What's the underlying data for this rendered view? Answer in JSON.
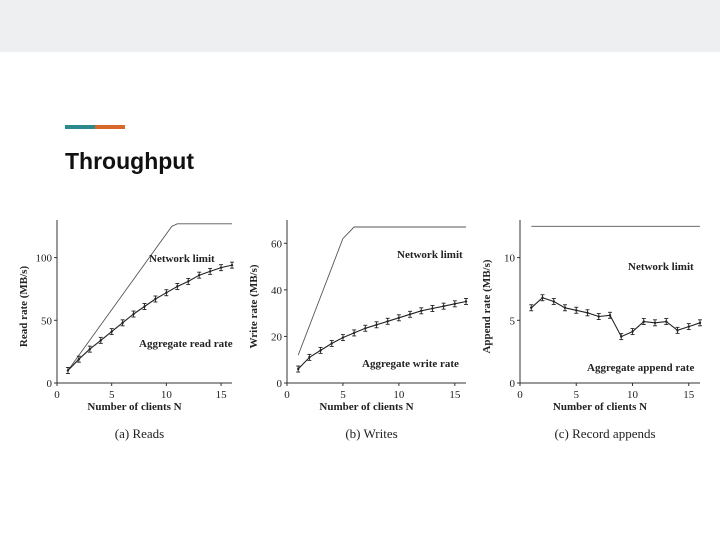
{
  "slide": {
    "title": "Throughput",
    "accent_colors": [
      "#2a8a8c",
      "#d9662b"
    ],
    "background_band": "#eeeff0"
  },
  "chart_data": [
    {
      "type": "line",
      "caption": "(a) Reads",
      "xlabel": "Number of clients N",
      "ylabel": "Read rate (MB/s)",
      "xlim": [
        0,
        16
      ],
      "ylim": [
        0,
        130
      ],
      "xticks": [
        "0",
        "5",
        "10",
        "15"
      ],
      "yticks": [
        "0",
        "50",
        "100"
      ],
      "grid": false,
      "series": [
        {
          "name": "Network limit",
          "x": [
            1,
            10.5,
            11,
            16
          ],
          "y": [
            10,
            125,
            127,
            127
          ]
        },
        {
          "name": "Aggregate read rate",
          "x": [
            1,
            2,
            3,
            4,
            5,
            6,
            7,
            8,
            9,
            10,
            11,
            12,
            13,
            14,
            15,
            16
          ],
          "y": [
            10,
            19,
            27,
            34,
            41,
            48,
            55,
            61,
            67,
            72,
            77,
            81,
            86,
            89,
            92,
            94
          ]
        }
      ]
    },
    {
      "type": "line",
      "caption": "(b) Writes",
      "xlabel": "Number of clients N",
      "ylabel": "Write rate (MB/s)",
      "xlim": [
        0,
        16
      ],
      "ylim": [
        0,
        70
      ],
      "xticks": [
        "0",
        "5",
        "10",
        "15"
      ],
      "yticks": [
        "0",
        "20",
        "40",
        "60"
      ],
      "grid": false,
      "series": [
        {
          "name": "Network limit",
          "x": [
            1,
            5,
            6,
            16
          ],
          "y": [
            12,
            62,
            67,
            67
          ]
        },
        {
          "name": "Aggregate write rate",
          "x": [
            1,
            2,
            3,
            4,
            5,
            6,
            7,
            8,
            9,
            10,
            11,
            12,
            13,
            14,
            15,
            16
          ],
          "y": [
            6,
            11,
            14,
            17,
            19.5,
            21.5,
            23.5,
            25,
            26.5,
            28,
            29.5,
            31,
            32,
            33,
            34,
            35
          ]
        }
      ]
    },
    {
      "type": "line",
      "caption": "(c) Record appends",
      "xlabel": "Number of clients N",
      "ylabel": "Append rate (MB/s)",
      "xlim": [
        0,
        16
      ],
      "ylim": [
        0,
        13
      ],
      "xticks": [
        "0",
        "5",
        "10",
        "15"
      ],
      "yticks": [
        "0",
        "5",
        "10"
      ],
      "grid": false,
      "series": [
        {
          "name": "Network limit",
          "x": [
            1,
            16
          ],
          "y": [
            12.5,
            12.5
          ]
        },
        {
          "name": "Aggregate append rate",
          "x": [
            1,
            2,
            3,
            4,
            5,
            6,
            7,
            8,
            9,
            10,
            11,
            12,
            13,
            14,
            15,
            16
          ],
          "y": [
            6,
            6.8,
            6.5,
            6,
            5.8,
            5.6,
            5.3,
            5.4,
            3.7,
            4.1,
            4.9,
            4.8,
            4.9,
            4.2,
            4.5,
            4.8
          ]
        }
      ]
    }
  ]
}
